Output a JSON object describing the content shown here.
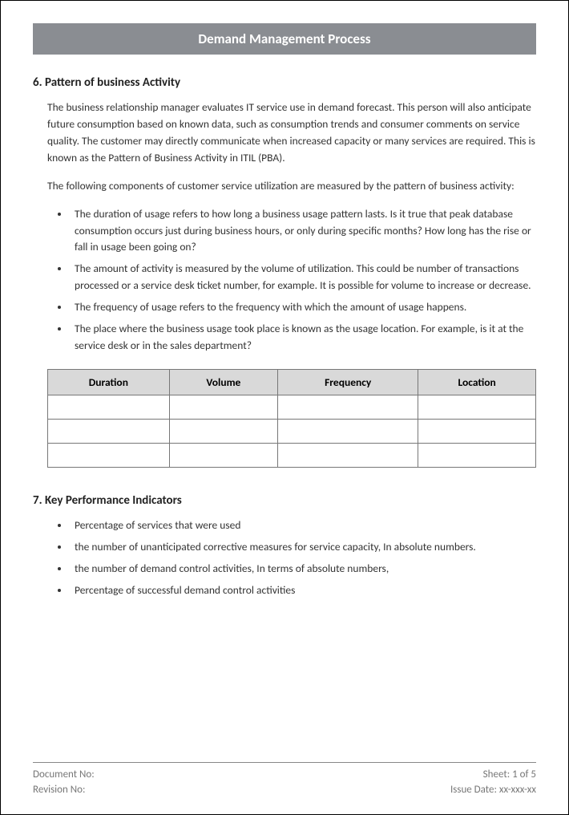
{
  "title": "Demand Management Process",
  "section6": {
    "heading": "6. Pattern of business Activity",
    "para1": "The business relationship manager evaluates IT service use in demand forecast. This person will also anticipate future consumption based on known data, such as consumption trends and consumer comments on service quality. The customer may directly communicate when increased capacity or many services are required. This is known as the Pattern of Business Activity in ITIL (PBA).",
    "para2": "The following components of customer service utilization are measured by the pattern of business activity:",
    "bullets": [
      "The duration of usage refers to how long a business usage pattern lasts. Is it true that peak database consumption occurs just during business hours, or only during specific months? How long has the rise or fall in usage been going on?",
      "The amount of activity is measured by the volume of utilization. This could be number of transactions processed or a service desk ticket number, for example. It is possible for volume to increase or decrease.",
      "The frequency of usage refers to the frequency with which the amount of usage happens.",
      "The place where the business usage took place is known as the usage location. For example, is it at the service desk or in the sales department?"
    ],
    "table": {
      "columns": [
        "Duration",
        "Volume",
        "Frequency",
        "Location"
      ],
      "rows": [
        [
          "",
          "",
          "",
          ""
        ],
        [
          "",
          "",
          "",
          ""
        ],
        [
          "",
          "",
          "",
          ""
        ]
      ],
      "header_bg": "#d9d9d9",
      "border_color": "#777777"
    }
  },
  "section7": {
    "heading": "7. Key Performance Indicators",
    "bullets": [
      "Percentage of services that were used",
      " the number of unanticipated corrective measures for service capacity, In absolute numbers.",
      " the number of demand control activities, In terms of absolute numbers,",
      "Percentage of successful demand control activities"
    ]
  },
  "footer": {
    "doc_no_label": "Document No:",
    "sheet_label": "Sheet: 1 of 5",
    "rev_no_label": "Revision No:",
    "issue_date_label": "Issue Date: xx-xxx-xx"
  },
  "colors": {
    "title_bar_bg": "#8a8d92",
    "title_bar_text": "#ffffff",
    "body_text": "#333333",
    "footer_text": "#777777"
  }
}
